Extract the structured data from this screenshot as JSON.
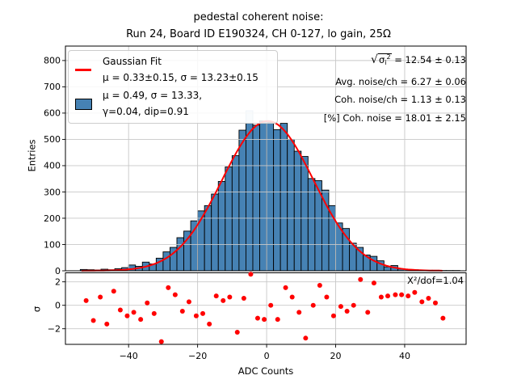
{
  "colors": {
    "bar_fill": "#4682b4",
    "bar_edge": "#000000",
    "overlay_fill": "#cfe0f0",
    "overlay_edge": "#9db8d2",
    "fit_line": "#ff0000",
    "residual_marker": "#ff0000",
    "grid": "#c8c8c8",
    "frame": "#000000"
  },
  "chart_data": [
    {
      "type": "bar",
      "name": "pedestal-noise-histogram",
      "title_line1": "pedestal coherent noise:",
      "title_line2": "Run 24, Board ID E190324, CH 0-127, lo gain, 25Ω",
      "xlabel": "ADC Counts",
      "ylabel": "Entries",
      "xlim": [
        -58.3,
        57.8
      ],
      "ylim": [
        0,
        855
      ],
      "yticks": [
        0,
        100,
        200,
        300,
        400,
        500,
        600,
        700,
        800
      ],
      "xgrid_ticks": [
        -40,
        -20,
        0,
        20,
        40
      ],
      "grid": true,
      "bin_width": 2,
      "bin_centers": [
        -53,
        -51,
        -49,
        -47,
        -45,
        -43,
        -41,
        -39,
        -37,
        -35,
        -33,
        -31,
        -29,
        -27,
        -25,
        -23,
        -21,
        -19,
        -17,
        -15,
        -13,
        -11,
        -9,
        -7,
        -5,
        -3,
        -1,
        1,
        3,
        5,
        7,
        9,
        11,
        13,
        15,
        17,
        19,
        21,
        23,
        25,
        27,
        29,
        31,
        33,
        35,
        37,
        39,
        41,
        43,
        45,
        47,
        49,
        51,
        53,
        55
      ],
      "counts": [
        5,
        4,
        3,
        6,
        4,
        8,
        12,
        22,
        17,
        33,
        26,
        48,
        72,
        89,
        126,
        151,
        190,
        228,
        248,
        292,
        340,
        395,
        438,
        535,
        561,
        554,
        570,
        564,
        537,
        561,
        500,
        455,
        435,
        351,
        343,
        307,
        248,
        182,
        161,
        105,
        89,
        60,
        55,
        38,
        15,
        20,
        7,
        5,
        4,
        3,
        2,
        2,
        1,
        1,
        1
      ],
      "overlay_bin": {
        "center": -5,
        "count": 609
      },
      "fit": {
        "label": "Gaussian Fit",
        "A": 570,
        "mu": 0.33,
        "sigma": 13.23,
        "domain": [
          -53.5,
          51.5
        ]
      },
      "legend": {
        "fit_line1": "Gaussian Fit",
        "fit_line2": "μ = 0.33±0.15, σ = 13.23±0.15",
        "hist_line1": "μ = 0.49, σ = 13.33,",
        "hist_line2": "γ=0.04, dip=0.91"
      },
      "legend_position": "upper left",
      "annotations": {
        "sqrt_radical": "√",
        "sqrt_sigma": "σ",
        "sqrt_sub": "i",
        "sqrt_sup": "2",
        "sqrt_rest": " = 12.54 ± 0.13",
        "avg_noise": "Avg. noise/ch = 6.27 ± 0.06",
        "coh_noise": "Coh. noise/ch = 1.13 ± 0.13",
        "coh_noise_pct": "[%] Coh. noise = 18.01 ± 2.15"
      }
    },
    {
      "type": "scatter",
      "name": "fit-residuals",
      "xlabel": "ADC Counts",
      "ylabel": "σ",
      "xlim": [
        -58.3,
        57.8
      ],
      "ylim": [
        -3.33,
        2.77
      ],
      "yticks": [
        2,
        0,
        -2
      ],
      "xticks": [
        -40,
        -20,
        0,
        20,
        40
      ],
      "grid": true,
      "annotation": "Χ²/dof=1.04",
      "points": [
        [
          -52.3,
          0.4
        ],
        [
          -50.2,
          -1.3
        ],
        [
          -48.2,
          0.7
        ],
        [
          -46.3,
          -1.6
        ],
        [
          -44.3,
          1.2
        ],
        [
          -42.4,
          -0.4
        ],
        [
          -40.4,
          -0.9
        ],
        [
          -38.5,
          -0.6
        ],
        [
          -36.5,
          -1.2
        ],
        [
          -34.6,
          0.2
        ],
        [
          -32.6,
          -0.7
        ],
        [
          -30.5,
          -3.1
        ],
        [
          -28.5,
          1.5
        ],
        [
          -26.5,
          0.9
        ],
        [
          -24.4,
          -0.5
        ],
        [
          -22.5,
          0.3
        ],
        [
          -20.4,
          -0.9
        ],
        [
          -18.5,
          -0.7
        ],
        [
          -16.6,
          -1.6
        ],
        [
          -14.6,
          0.8
        ],
        [
          -12.6,
          0.4
        ],
        [
          -10.7,
          0.7
        ],
        [
          -8.5,
          -2.3
        ],
        [
          -6.6,
          0.6
        ],
        [
          -4.6,
          2.65
        ],
        [
          -2.6,
          -1.1
        ],
        [
          -0.7,
          -1.2
        ],
        [
          1.2,
          0.0
        ],
        [
          3.2,
          -1.2
        ],
        [
          5.5,
          1.5
        ],
        [
          7.4,
          0.7
        ],
        [
          9.4,
          -0.6
        ],
        [
          11.3,
          -2.8
        ],
        [
          13.5,
          0.0
        ],
        [
          15.4,
          1.7
        ],
        [
          17.4,
          0.7
        ],
        [
          19.4,
          -0.9
        ],
        [
          21.5,
          -0.1
        ],
        [
          23.3,
          -0.5
        ],
        [
          25.2,
          0.0
        ],
        [
          27.2,
          2.2
        ],
        [
          29.3,
          -0.6
        ],
        [
          31.1,
          1.9
        ],
        [
          33.2,
          0.7
        ],
        [
          35.1,
          0.8
        ],
        [
          37.3,
          0.9
        ],
        [
          39.1,
          0.9
        ],
        [
          41.0,
          0.8
        ],
        [
          42.9,
          1.1
        ],
        [
          45.0,
          0.3
        ],
        [
          46.9,
          0.6
        ],
        [
          48.9,
          0.2
        ],
        [
          51.1,
          -1.1
        ]
      ]
    }
  ]
}
